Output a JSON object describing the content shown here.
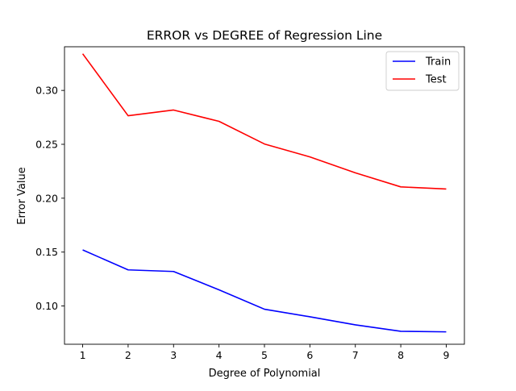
{
  "chart_data": {
    "type": "line",
    "title": "ERROR vs DEGREE of Regression Line",
    "xlabel": "Degree of Polynomial",
    "ylabel": "Error Value",
    "x": [
      1,
      2,
      3,
      4,
      5,
      6,
      7,
      8,
      9
    ],
    "xticks": [
      1,
      2,
      3,
      4,
      5,
      6,
      7,
      8,
      9
    ],
    "yticks": [
      0.1,
      0.15,
      0.2,
      0.25,
      0.3
    ],
    "xlim": [
      0.6,
      9.4
    ],
    "ylim": [
      0.0645,
      0.3405
    ],
    "grid": false,
    "legend_position": "top-right",
    "series": [
      {
        "name": "Train",
        "color": "#0000ff",
        "values": [
          0.152,
          0.1335,
          0.132,
          0.115,
          0.097,
          0.09,
          0.0825,
          0.0765,
          0.076
        ]
      },
      {
        "name": "Test",
        "color": "#ff0000",
        "values": [
          0.334,
          0.2765,
          0.2818,
          0.2713,
          0.2503,
          0.2383,
          0.2235,
          0.2105,
          0.2085
        ]
      }
    ]
  }
}
